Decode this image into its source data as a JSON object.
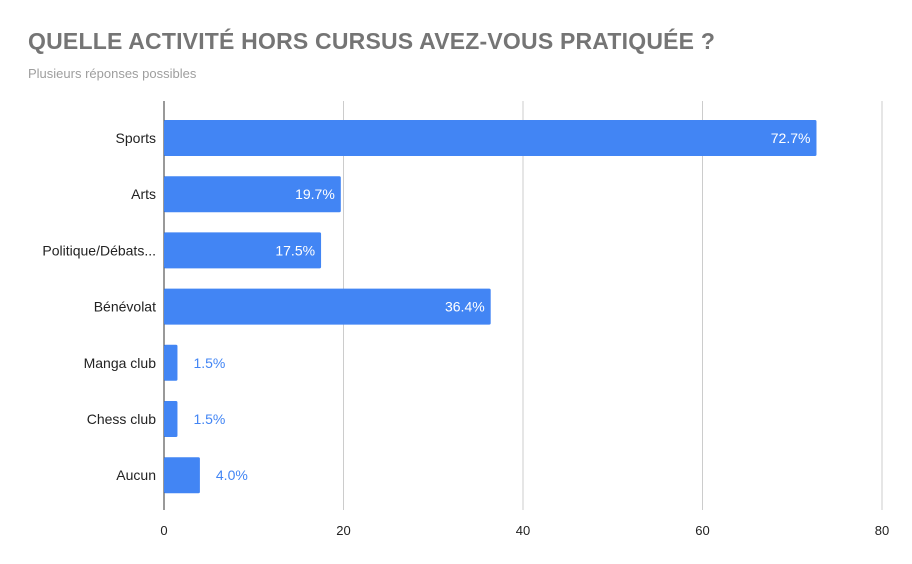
{
  "chart_data": {
    "type": "bar",
    "orientation": "horizontal",
    "title": "QUELLE ACTIVITÉ HORS CURSUS AVEZ-VOUS PRATIQUÉE ?",
    "subtitle": "Plusieurs réponses possibles",
    "categories": [
      "Sports",
      "Arts",
      "Politique/Débats...",
      "Bénévolat",
      "Manga club",
      "Chess club",
      "Aucun"
    ],
    "values": [
      72.7,
      19.7,
      17.5,
      36.4,
      1.5,
      1.5,
      4.0
    ],
    "data_labels": [
      "72.7%",
      "19.7%",
      "17.5%",
      "36.4%",
      "1.5%",
      "1.5%",
      "4.0%"
    ],
    "xlim": [
      0,
      80
    ],
    "x_ticks": [
      0,
      20,
      40,
      60,
      80
    ],
    "grid": true,
    "legend": "none",
    "colors": {
      "bar": "#4285f4",
      "label_inside": "#ffffff",
      "label_outside": "#4285f4",
      "grid": "#cccccc",
      "axis": "#333333",
      "text": "#222222"
    }
  }
}
